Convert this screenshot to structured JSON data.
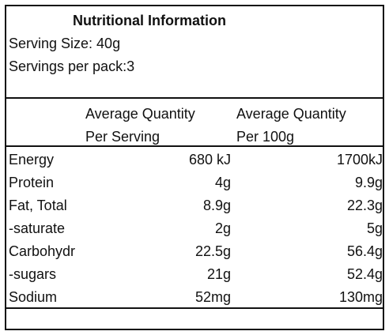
{
  "panel": {
    "title": "Nutritional Information",
    "serving_size": "Serving Size: 40g",
    "servings_per_pack": "Servings per pack:3"
  },
  "table": {
    "columns": [
      {
        "line1": "Average Quantity",
        "line2": "Per Serving"
      },
      {
        "line1": "Average Quantity",
        "line2": "Per 100g"
      }
    ],
    "rows": [
      {
        "label": "Energy",
        "per_serving": "680 kJ",
        "per_100g": "1700kJ"
      },
      {
        "label": "Protein",
        "per_serving": "4g",
        "per_100g": "9.9g"
      },
      {
        "label": "Fat, Total",
        "per_serving": "8.9g",
        "per_100g": "22.3g"
      },
      {
        "label": " -saturate",
        "per_serving": "2g",
        "per_100g": "5g"
      },
      {
        "label": "Carbohydr",
        "per_serving": "22.5g",
        "per_100g": "56.4g"
      },
      {
        "label": " -sugars",
        "per_serving": "21g",
        "per_100g": "52.4g"
      },
      {
        "label": "Sodium",
        "per_serving": "52mg",
        "per_100g": "130mg"
      }
    ]
  }
}
